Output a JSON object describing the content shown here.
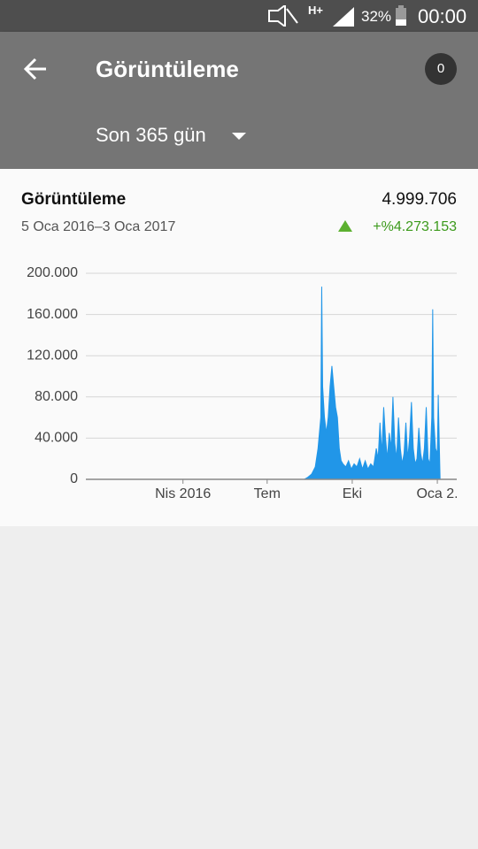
{
  "status_bar": {
    "network": "H+",
    "battery": "32%",
    "time": "00:00"
  },
  "app_bar": {
    "title": "Görüntüleme",
    "badge": "0",
    "period": "Son 365 gün"
  },
  "card": {
    "title": "Görüntüleme",
    "total": "4.999.706",
    "date_range": "5 Oca 2016–3 Oca 2017",
    "change": "+%4.273.153"
  },
  "chart_data": {
    "type": "area",
    "color": "#2196e8",
    "grid": true,
    "x": [
      0,
      218,
      222,
      226,
      230,
      233,
      235,
      236,
      237,
      238,
      240,
      242,
      244,
      246,
      248,
      250,
      252,
      254,
      256,
      258,
      260,
      263,
      266,
      269,
      272,
      275,
      278,
      281,
      284,
      287,
      290,
      293,
      296,
      298,
      300,
      302,
      304,
      306,
      308,
      310,
      312,
      314,
      316,
      318,
      320,
      322,
      324,
      326,
      328,
      330,
      332,
      334,
      336,
      338,
      340,
      342,
      344,
      346,
      348,
      350,
      352,
      354,
      356,
      357,
      358,
      360,
      362,
      363,
      364,
      365
    ],
    "values": [
      0,
      0,
      2000,
      5000,
      12000,
      30000,
      50000,
      60000,
      187000,
      90000,
      60000,
      45000,
      60000,
      90000,
      110000,
      90000,
      70000,
      60000,
      30000,
      18000,
      15000,
      12000,
      18000,
      10000,
      15000,
      12000,
      20000,
      10000,
      18000,
      10000,
      15000,
      12000,
      30000,
      20000,
      55000,
      25000,
      70000,
      40000,
      20000,
      45000,
      30000,
      80000,
      35000,
      20000,
      60000,
      30000,
      15000,
      25000,
      55000,
      20000,
      40000,
      75000,
      30000,
      15000,
      20000,
      50000,
      25000,
      15000,
      30000,
      70000,
      20000,
      15000,
      60000,
      165000,
      60000,
      30000,
      25000,
      82000,
      40000,
      0
    ],
    "xlim": [
      -18,
      383
    ],
    "ylim": [
      0,
      200000
    ],
    "xticks": [
      {
        "value": 87,
        "label": "Nis 2016"
      },
      {
        "value": 178,
        "label": "Tem"
      },
      {
        "value": 270,
        "label": "Eki"
      },
      {
        "value": 362,
        "label": "Oca 2."
      }
    ],
    "yticks": [
      0,
      {
        "value": 40000,
        "label": "40.000"
      },
      {
        "value": 80000,
        "label": "80.000"
      },
      {
        "value": 120000,
        "label": "120.000"
      },
      {
        "value": 160000,
        "label": "160.000"
      },
      {
        "value": 200000,
        "label": "200.000"
      }
    ]
  }
}
